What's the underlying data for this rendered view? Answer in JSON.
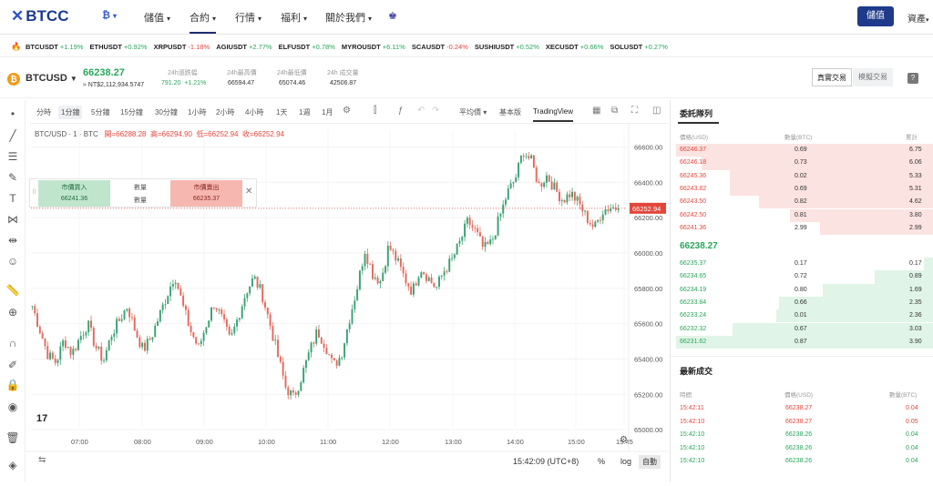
{
  "nav": {
    "logo": "BTCC",
    "items": [
      "儲值",
      "合約",
      "行情",
      "福利",
      "關於我們"
    ],
    "deposit_button": "儲值",
    "assets_label": "資產"
  },
  "ticker": [
    {
      "sym": "BTCUSDT",
      "chg": "+1.19%",
      "dir": "up"
    },
    {
      "sym": "ETHUSDT",
      "chg": "+0.92%",
      "dir": "up"
    },
    {
      "sym": "XRPUSDT",
      "chg": "-1.18%",
      "dir": "dn"
    },
    {
      "sym": "AGIUSDT",
      "chg": "+2.77%",
      "dir": "up"
    },
    {
      "sym": "ELFUSDT",
      "chg": "+0.78%",
      "dir": "up"
    },
    {
      "sym": "MYROUSDT",
      "chg": "+6.11%",
      "dir": "up"
    },
    {
      "sym": "SCAUSDT",
      "chg": "-0.24%",
      "dir": "dn"
    },
    {
      "sym": "SUSHIUSDT",
      "chg": "+0.52%",
      "dir": "up"
    },
    {
      "sym": "XECUSDT",
      "chg": "+0.66%",
      "dir": "up"
    },
    {
      "sym": "SOLUSDT",
      "chg": "+0.27%",
      "dir": "up"
    }
  ],
  "instrument": {
    "pair": "BTCUSD",
    "coin_symbol": "₿",
    "last_price": "66238.27",
    "twd_value": "≈ NT$2,112,934.5747",
    "stats": [
      {
        "label": "24h漲跌幅",
        "value": "791.20",
        "value2": "+1.21%"
      },
      {
        "label": "24h最高價",
        "value": "66594.47"
      },
      {
        "label": "24h最低價",
        "value": "65074.46"
      },
      {
        "label": "24h 成交量",
        "value": "42506.87"
      }
    ],
    "real_trade": "真實交易",
    "demo_trade": "模擬交易",
    "help": "?"
  },
  "toolbar": {
    "timeframes": [
      "分時",
      "1分鐘",
      "5分鐘",
      "15分鐘",
      "30分鐘",
      "1小時",
      "2小時",
      "4小時",
      "1天",
      "1週",
      "1月"
    ],
    "active_tf": "1分鐘",
    "avg_label": "平均價",
    "basic_label": "基本版",
    "tv_label": "TradingView"
  },
  "chart_data": {
    "type": "candlestick",
    "title": "BTC/USD · 1 · BTC",
    "ohlc": {
      "open": "開=66288.28",
      "high": "高=66294.90",
      "low": "低=66252.94",
      "close": "收=66252.94"
    },
    "y_ticks": [
      "66600.00",
      "66400.00",
      "66200.00",
      "66000.00",
      "65800.00",
      "65600.00",
      "65400.00",
      "65200.00",
      "65000.00"
    ],
    "x_ticks": [
      "07:00",
      "08:00",
      "09:00",
      "10:00",
      "11:00",
      "12:00",
      "13:00",
      "14:00",
      "15:00",
      "15:45"
    ],
    "ylim": [
      64980,
      66690
    ],
    "current_price_tag": "66252.94",
    "closes": [
      65700,
      65560,
      65420,
      65380,
      65510,
      65430,
      65520,
      65600,
      65470,
      65390,
      65540,
      65620,
      65700,
      65560,
      65450,
      65520,
      65640,
      65760,
      65880,
      65700,
      65560,
      65460,
      65600,
      65720,
      65620,
      65500,
      65640,
      65780,
      65860,
      65770,
      65600,
      65420,
      65240,
      65180,
      65300,
      65440,
      65560,
      65480,
      65360,
      65420,
      65620,
      65800,
      66020,
      65880,
      65840,
      66040,
      65960,
      65860,
      65780,
      65920,
      65860,
      65800,
      65900,
      65960,
      66060,
      66180,
      66120,
      66020,
      66060,
      66200,
      66340,
      66420,
      66580,
      66520,
      66380,
      66440,
      66360,
      66300,
      66340,
      66280,
      66200,
      66140,
      66240,
      66260,
      66252.94
    ]
  },
  "clock": "15:42:09 (UTC+8)",
  "chart_footer": {
    "pct": "%",
    "log": "log",
    "auto": "自動"
  },
  "order_panel": {
    "buy_label": "市價買入",
    "buy_price": "66241.36",
    "qty_label": "數量",
    "qty_value": "數量",
    "sell_label": "市價賣出",
    "sell_price": "66235.37"
  },
  "orderbook": {
    "title": "委託隊列",
    "headers": [
      "價格(USD)",
      "數量(BTC)",
      "累計"
    ],
    "asks": [
      {
        "price": "66246.37",
        "qty": "0.69",
        "total": "6.75",
        "depth": 1.0
      },
      {
        "price": "66246.18",
        "qty": "0.73",
        "total": "6.06",
        "depth": 0.9
      },
      {
        "price": "66245.36",
        "qty": "0.02",
        "total": "5.33",
        "depth": 0.79
      },
      {
        "price": "66243.82",
        "qty": "0.69",
        "total": "5.31",
        "depth": 0.79
      },
      {
        "price": "66243.50",
        "qty": "0.82",
        "total": "4.62",
        "depth": 0.68
      },
      {
        "price": "66242.50",
        "qty": "0.81",
        "total": "3.80",
        "depth": 0.56
      },
      {
        "price": "66241.36",
        "qty": "2.99",
        "total": "2.99",
        "depth": 0.44
      }
    ],
    "last_price": "66238.27",
    "bids": [
      {
        "price": "66235.37",
        "qty": "0.17",
        "total": "0.17",
        "depth": 0.04
      },
      {
        "price": "66234.65",
        "qty": "0.72",
        "total": "0.89",
        "depth": 0.23
      },
      {
        "price": "66234.19",
        "qty": "0.80",
        "total": "1.69",
        "depth": 0.43
      },
      {
        "price": "66233.84",
        "qty": "0.66",
        "total": "2.35",
        "depth": 0.6
      },
      {
        "price": "66233.24",
        "qty": "0.01",
        "total": "2.36",
        "depth": 0.61
      },
      {
        "price": "66232.32",
        "qty": "0.67",
        "total": "3.03",
        "depth": 0.78
      },
      {
        "price": "66231.62",
        "qty": "0.87",
        "total": "3.90",
        "depth": 1.0
      }
    ]
  },
  "trades": {
    "title": "最新成交",
    "headers": [
      "時間",
      "價格(USD)",
      "數量(BTC)"
    ],
    "rows": [
      {
        "time": "15:42:11",
        "price": "66238.27",
        "qty": "0.04",
        "dir": "dn"
      },
      {
        "time": "15:42:10",
        "price": "66238.27",
        "qty": "0.05",
        "dir": "dn"
      },
      {
        "time": "15:42:10",
        "price": "66238.26",
        "qty": "0.04",
        "dir": "up"
      },
      {
        "time": "15:42:10",
        "price": "66238.26",
        "qty": "0.04",
        "dir": "up"
      },
      {
        "time": "15:42:10",
        "price": "66238.26",
        "qty": "0.04",
        "dir": "up"
      }
    ]
  }
}
